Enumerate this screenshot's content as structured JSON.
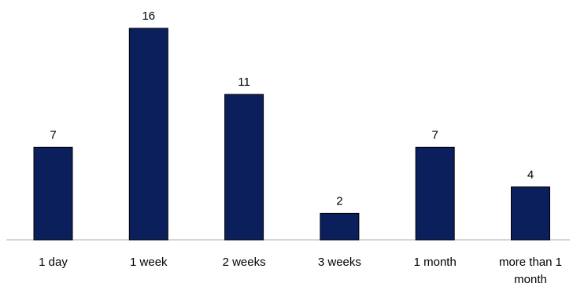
{
  "chart_data": {
    "type": "bar",
    "categories": [
      "1 day",
      "1 week",
      "2 weeks",
      "3 weeks",
      "1 month",
      "more than 1 month"
    ],
    "category_lines": [
      [
        "1 day"
      ],
      [
        "1 week"
      ],
      [
        "2 weeks"
      ],
      [
        "3 weeks"
      ],
      [
        "1 month"
      ],
      [
        "more than 1",
        "month"
      ]
    ],
    "values": [
      7,
      16,
      11,
      2,
      7,
      4
    ],
    "data_labels": [
      "7",
      "16",
      "11",
      "2",
      "7",
      "4"
    ],
    "bar_color": "#0b1f5c",
    "ylim": [
      0,
      16
    ],
    "grid": false,
    "legend": "none"
  }
}
